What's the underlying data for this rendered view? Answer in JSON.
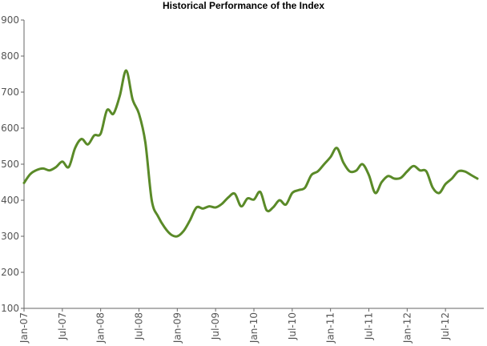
{
  "chart_data": {
    "type": "line",
    "title": "Historical Performance of the Index",
    "xlabel": "",
    "ylabel": "",
    "ylim": [
      100,
      900
    ],
    "yticks": [
      100,
      200,
      300,
      400,
      500,
      600,
      700,
      800,
      900
    ],
    "xlim": [
      "2007-01",
      "2012-12"
    ],
    "xticks": [
      "Jan-07",
      "Jul-07",
      "Jan-08",
      "Jul-08",
      "Jan-09",
      "Jul-09",
      "Jan-10",
      "Jul-10",
      "Jan-11",
      "Jul-11",
      "Jan-12",
      "Jul-12"
    ],
    "grid": false,
    "legend": "none",
    "line_color": "#5a8a28",
    "series": [
      {
        "x": [
          "2007-01",
          "2007-02",
          "2007-03",
          "2007-04",
          "2007-05",
          "2007-06",
          "2007-07",
          "2007-08",
          "2007-09",
          "2007-10",
          "2007-11",
          "2007-12",
          "2008-01",
          "2008-02",
          "2008-03",
          "2008-04",
          "2008-05",
          "2008-06",
          "2008-07",
          "2008-08",
          "2008-09",
          "2008-10",
          "2008-11",
          "2008-12",
          "2009-01",
          "2009-02",
          "2009-03",
          "2009-04",
          "2009-05",
          "2009-06",
          "2009-07",
          "2009-08",
          "2009-09",
          "2009-10",
          "2009-11",
          "2009-12",
          "2010-01",
          "2010-02",
          "2010-03",
          "2010-04",
          "2010-05",
          "2010-06",
          "2010-07",
          "2010-08",
          "2010-09",
          "2010-10",
          "2010-11",
          "2010-12",
          "2011-01",
          "2011-02",
          "2011-03",
          "2011-04",
          "2011-05",
          "2011-06",
          "2011-07",
          "2011-08",
          "2011-09",
          "2011-10",
          "2011-11",
          "2011-12",
          "2012-01",
          "2012-02",
          "2012-03",
          "2012-04",
          "2012-05",
          "2012-06",
          "2012-07",
          "2012-08",
          "2012-09",
          "2012-10",
          "2012-11",
          "2012-12"
        ],
        "values": [
          448,
          473,
          484,
          488,
          483,
          492,
          507,
          492,
          545,
          570,
          555,
          580,
          585,
          650,
          640,
          690,
          760,
          680,
          640,
          560,
          400,
          355,
          325,
          305,
          300,
          315,
          345,
          380,
          377,
          383,
          380,
          390,
          408,
          418,
          383,
          405,
          402,
          423,
          372,
          380,
          400,
          388,
          420,
          428,
          435,
          470,
          480,
          500,
          520,
          545,
          505,
          480,
          482,
          500,
          470,
          420,
          450,
          467,
          460,
          462,
          480,
          495,
          483,
          480,
          435,
          420,
          445,
          460,
          480,
          480,
          470,
          460
        ]
      }
    ]
  }
}
